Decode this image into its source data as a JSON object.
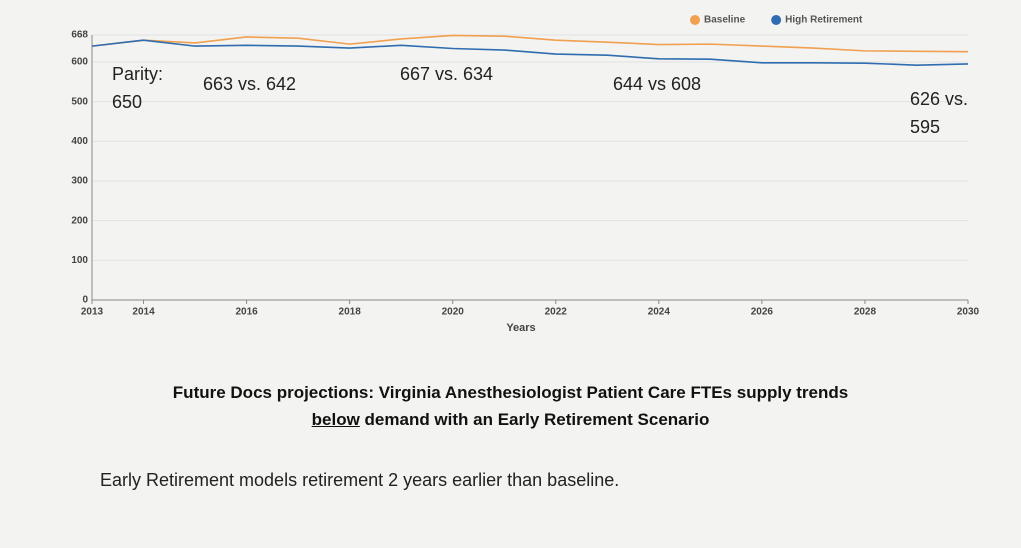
{
  "chart_data": {
    "type": "line",
    "x_label": "Years",
    "x": [
      2013,
      2014,
      2015,
      2016,
      2017,
      2018,
      2019,
      2020,
      2021,
      2022,
      2023,
      2024,
      2025,
      2026,
      2027,
      2028,
      2029,
      2030
    ],
    "series": [
      {
        "name": "Baseline",
        "color": "#f0a050",
        "values": [
          640,
          655,
          648,
          663,
          660,
          645,
          658,
          667,
          665,
          655,
          650,
          644,
          645,
          640,
          635,
          628,
          627,
          626
        ]
      },
      {
        "name": "High Retirement",
        "color": "#2f6db0",
        "values": [
          640,
          655,
          640,
          642,
          640,
          635,
          642,
          634,
          630,
          620,
          617,
          608,
          607,
          598,
          598,
          597,
          592,
          595
        ]
      }
    ],
    "xlim": [
      2013,
      2030
    ],
    "xticks": [
      2013,
      2014,
      2016,
      2018,
      2020,
      2022,
      2024,
      2026,
      2028,
      2030
    ],
    "ylim": [
      0,
      668
    ],
    "yticks": [
      0,
      100,
      200,
      300,
      400,
      500,
      600,
      668
    ],
    "grid": true,
    "legend": "top-right",
    "annotations": [
      {
        "lines": [
          "Parity:",
          "650"
        ]
      },
      {
        "lines": [
          "663 vs. 642"
        ]
      },
      {
        "lines": [
          "667 vs. 634"
        ]
      },
      {
        "lines": [
          "644 vs 608"
        ]
      },
      {
        "lines": [
          "626 vs.",
          "595"
        ]
      }
    ]
  },
  "caption": {
    "line1": "Future Docs projections:  Virginia Anesthesiologist Patient Care FTEs supply trends",
    "underlined": "below",
    "line2": " demand with an Early Retirement Scenario"
  },
  "note": "Early Retirement models retirement 2 years earlier than baseline."
}
